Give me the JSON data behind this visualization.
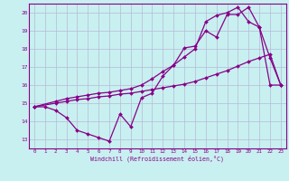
{
  "bg_color": "#c8f0f0",
  "grid_color": "#b8b8d8",
  "line_color": "#880088",
  "marker_color": "#880088",
  "xlim": [
    -0.5,
    23.5
  ],
  "ylim": [
    12.5,
    20.5
  ],
  "xticks": [
    0,
    1,
    2,
    3,
    4,
    5,
    6,
    7,
    8,
    9,
    10,
    11,
    12,
    13,
    14,
    15,
    16,
    17,
    18,
    19,
    20,
    21,
    22,
    23
  ],
  "yticks": [
    13,
    14,
    15,
    16,
    17,
    18,
    19,
    20
  ],
  "xlabel": "Windchill (Refroidissement éolien,°C)",
  "line1_x": [
    0,
    1,
    2,
    3,
    4,
    5,
    6,
    7,
    8,
    9,
    10,
    11,
    12,
    13,
    14,
    15,
    16,
    17,
    18,
    19,
    20,
    21,
    22,
    23
  ],
  "line1_y": [
    14.8,
    14.8,
    14.6,
    14.2,
    13.5,
    13.3,
    13.1,
    12.9,
    14.4,
    13.7,
    15.3,
    15.55,
    16.5,
    17.1,
    18.05,
    18.15,
    19.0,
    18.65,
    19.9,
    19.9,
    20.3,
    19.2,
    17.5,
    16.0
  ],
  "line2_x": [
    0,
    2,
    3,
    4,
    5,
    6,
    7,
    8,
    9,
    10,
    11,
    12,
    13,
    14,
    15,
    16,
    17,
    18,
    19,
    20,
    21,
    22,
    23
  ],
  "line2_y": [
    14.8,
    15.0,
    15.1,
    15.2,
    15.25,
    15.35,
    15.4,
    15.5,
    15.55,
    15.65,
    15.75,
    15.85,
    15.95,
    16.05,
    16.2,
    16.4,
    16.6,
    16.8,
    17.05,
    17.3,
    17.5,
    17.7,
    16.0
  ],
  "line3_x": [
    0,
    2,
    3,
    4,
    5,
    6,
    7,
    8,
    9,
    10,
    11,
    12,
    13,
    14,
    15,
    16,
    17,
    18,
    19,
    20,
    21,
    22,
    23
  ],
  "line3_y": [
    14.8,
    15.1,
    15.25,
    15.35,
    15.45,
    15.55,
    15.6,
    15.7,
    15.8,
    16.0,
    16.35,
    16.75,
    17.1,
    17.55,
    18.0,
    19.5,
    19.85,
    20.0,
    20.3,
    19.5,
    19.2,
    16.0,
    16.0
  ]
}
